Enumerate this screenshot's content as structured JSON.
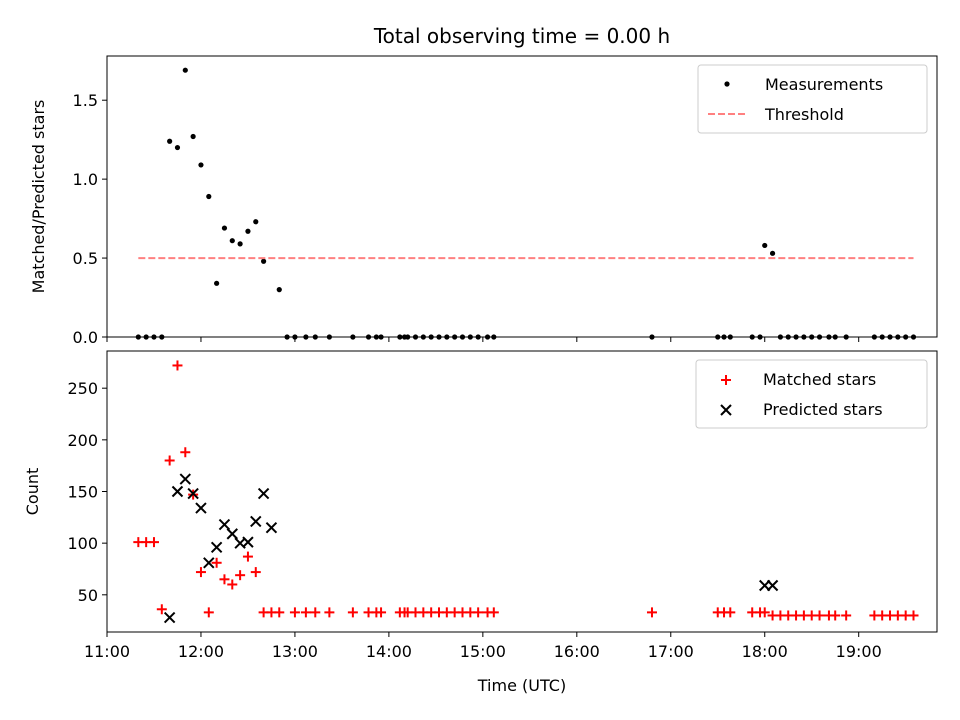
{
  "chart_data": [
    {
      "type": "scatter",
      "title": "Total observing time = 0.00 h",
      "xlabel": "",
      "ylabel": "Matched/Predicted stars",
      "xlim": [
        "11:00",
        "19:50"
      ],
      "ylim": [
        0,
        1.78
      ],
      "x_ticks": [
        "11:00",
        "12:00",
        "13:00",
        "14:00",
        "15:00",
        "16:00",
        "17:00",
        "18:00",
        "19:00"
      ],
      "x_tick_labels_visible": false,
      "y_ticks": [
        "0.0",
        "0.5",
        "1.0",
        "1.5"
      ],
      "legend_position": "top-right",
      "series": [
        {
          "name": "Measurements",
          "marker": "dot",
          "color": "#000000",
          "x": [
            "11:20",
            "11:25",
            "11:30",
            "11:35",
            "11:40",
            "11:45",
            "11:50",
            "11:55",
            "12:00",
            "12:05",
            "12:10",
            "12:15",
            "12:20",
            "12:25",
            "12:30",
            "12:35",
            "12:40",
            "12:50",
            "12:55",
            "13:00",
            "13:07",
            "13:13",
            "13:22",
            "13:37",
            "13:47",
            "13:52",
            "13:55",
            "14:07",
            "14:10",
            "14:12",
            "14:17",
            "14:22",
            "14:27",
            "14:32",
            "14:37",
            "14:42",
            "14:47",
            "14:52",
            "14:57",
            "15:03",
            "15:07",
            "16:48",
            "17:30",
            "17:34",
            "17:38",
            "17:52",
            "17:57",
            "18:00",
            "18:05",
            "18:10",
            "18:15",
            "18:20",
            "18:25",
            "18:30",
            "18:35",
            "18:41",
            "18:45",
            "18:52",
            "19:10",
            "19:15",
            "19:20",
            "19:25",
            "19:30",
            "19:35"
          ],
          "y": [
            0,
            0,
            0,
            0,
            1.24,
            1.2,
            1.69,
            1.27,
            1.09,
            0.89,
            0.34,
            0.69,
            0.61,
            0.59,
            0.67,
            0.73,
            0.48,
            0.3,
            0,
            0,
            0,
            0,
            0,
            0,
            0,
            0,
            0,
            0,
            0,
            0,
            0,
            0,
            0,
            0,
            0,
            0,
            0,
            0,
            0,
            0,
            0,
            0,
            0,
            0,
            0,
            0,
            0,
            0.58,
            0.53,
            0,
            0,
            0,
            0,
            0,
            0,
            0,
            0,
            0,
            0,
            0,
            0,
            0,
            0,
            0
          ]
        },
        {
          "name": "Threshold",
          "style": "dashed",
          "color": "#ff8080",
          "x": [
            "11:20",
            "19:35"
          ],
          "y": [
            0.5,
            0.5
          ]
        }
      ]
    },
    {
      "type": "scatter",
      "title": "",
      "xlabel": "Time (UTC)",
      "ylabel": "Count",
      "xlim": [
        "11:00",
        "19:50"
      ],
      "ylim": [
        14,
        286
      ],
      "x_ticks": [
        "11:00",
        "12:00",
        "13:00",
        "14:00",
        "15:00",
        "16:00",
        "17:00",
        "18:00",
        "19:00"
      ],
      "y_ticks": [
        "50",
        "100",
        "150",
        "200",
        "250"
      ],
      "legend_position": "top-right",
      "series": [
        {
          "name": "Matched stars",
          "marker": "plus",
          "color": "#ff0000",
          "x": [
            "11:20",
            "11:25",
            "11:30",
            "11:35",
            "11:40",
            "11:45",
            "11:50",
            "11:55",
            "12:00",
            "12:05",
            "12:10",
            "12:15",
            "12:20",
            "12:25",
            "12:30",
            "12:35",
            "12:40",
            "12:45",
            "12:50",
            "13:00",
            "13:07",
            "13:13",
            "13:22",
            "13:37",
            "13:47",
            "13:52",
            "13:55",
            "14:07",
            "14:10",
            "14:12",
            "14:17",
            "14:22",
            "14:27",
            "14:32",
            "14:37",
            "14:42",
            "14:47",
            "14:52",
            "14:57",
            "15:03",
            "15:07",
            "16:48",
            "17:30",
            "17:34",
            "17:38",
            "17:52",
            "17:57",
            "18:00",
            "18:05",
            "18:10",
            "18:15",
            "18:20",
            "18:25",
            "18:30",
            "18:35",
            "18:41",
            "18:45",
            "18:52",
            "19:10",
            "19:15",
            "19:20",
            "19:25",
            "19:30",
            "19:35"
          ],
          "y": [
            101,
            101,
            101,
            36,
            180,
            272,
            188,
            147,
            72,
            33,
            81,
            65,
            60,
            69,
            87,
            72,
            33,
            33,
            33,
            33,
            33,
            33,
            33,
            33,
            33,
            33,
            33,
            33,
            33,
            33,
            33,
            33,
            33,
            33,
            33,
            33,
            33,
            33,
            33,
            33,
            33,
            33,
            33,
            33,
            33,
            33,
            33,
            33,
            30,
            30,
            30,
            30,
            30,
            30,
            30,
            30,
            30,
            30,
            30,
            30,
            30,
            30,
            30,
            30
          ]
        },
        {
          "name": "Predicted stars",
          "marker": "x",
          "color": "#000000",
          "x": [
            "11:40",
            "11:45",
            "11:50",
            "11:55",
            "12:00",
            "12:05",
            "12:10",
            "12:15",
            "12:20",
            "12:25",
            "12:30",
            "12:35",
            "12:40",
            "12:45",
            "18:00",
            "18:05"
          ],
          "y": [
            28,
            150,
            162,
            148,
            134,
            81,
            96,
            118,
            109,
            100,
            101,
            121,
            148,
            115,
            59,
            59
          ]
        }
      ]
    }
  ]
}
